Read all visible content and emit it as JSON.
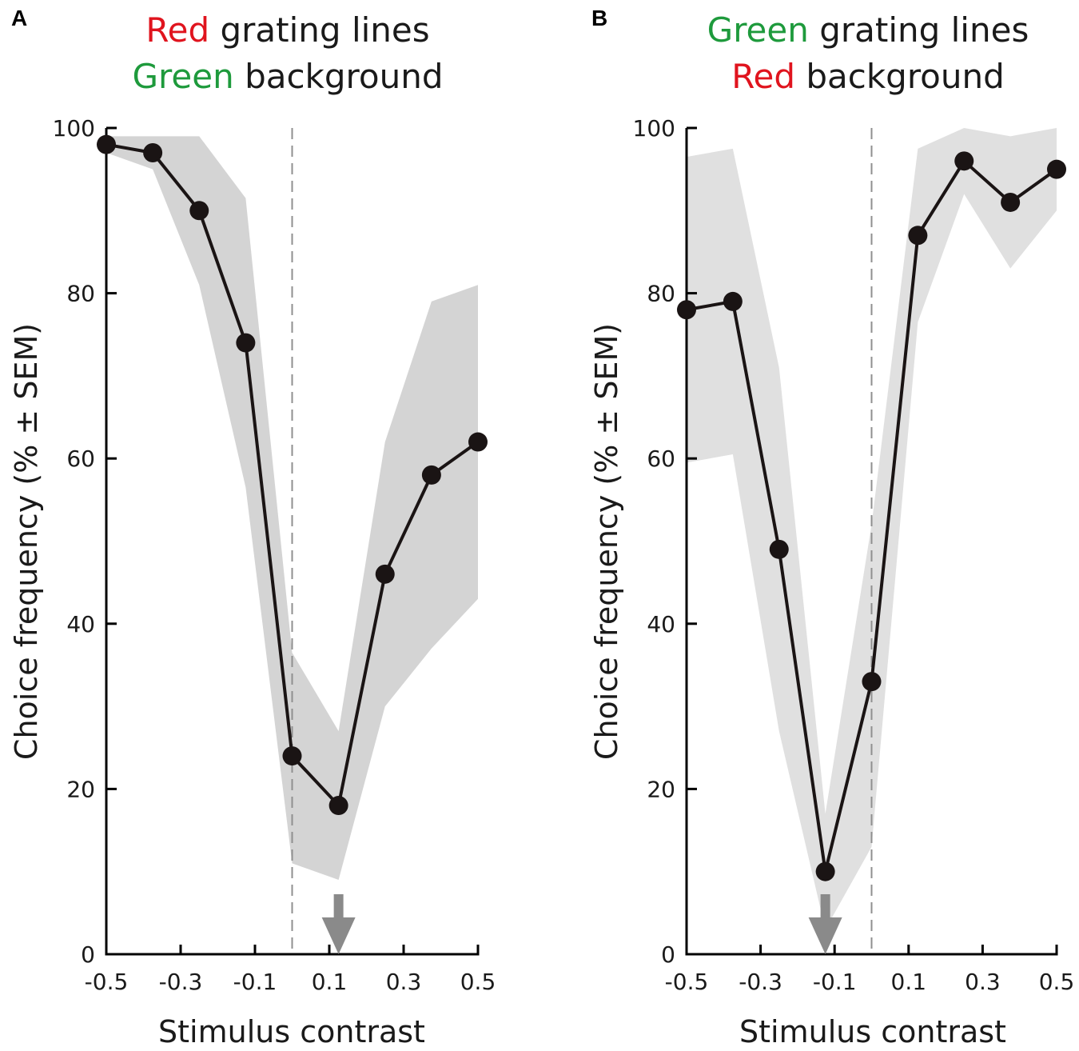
{
  "chart_data": [
    {
      "type": "line",
      "panel_label": "A",
      "title": {
        "line1": [
          {
            "text": "Red",
            "color": "#e0141e"
          },
          {
            "text": " grating lines",
            "color": "#1a1a1a"
          }
        ],
        "line2": [
          {
            "text": "Green",
            "color": "#1e9a3c"
          },
          {
            "text": " background",
            "color": "#1a1a1a"
          }
        ]
      },
      "xlabel": "Stimulus contrast",
      "ylabel": "Choice frequency  (% ± SEM)",
      "xlim": [
        -0.5,
        0.5
      ],
      "ylim": [
        0,
        100
      ],
      "xticks": [
        -0.5,
        -0.3,
        -0.1,
        0.1,
        0.3,
        0.5
      ],
      "xtick_labels": [
        "-0.5",
        "-0.3",
        "-0.1",
        "0.1",
        "0.3",
        "0.5"
      ],
      "yticks": [
        0,
        20,
        40,
        60,
        80,
        100
      ],
      "ytick_labels": [
        "0",
        "20",
        "40",
        "60",
        "80",
        "100"
      ],
      "x": [
        -0.5,
        -0.375,
        -0.25,
        -0.125,
        0.0,
        0.125,
        0.25,
        0.375,
        0.5
      ],
      "y": [
        98,
        97,
        90,
        74,
        24,
        18,
        46,
        58,
        62
      ],
      "sem_upper": [
        99,
        99,
        99,
        91.5,
        36.5,
        27,
        62,
        79,
        81
      ],
      "sem_lower": [
        97,
        95,
        81,
        56.5,
        11,
        9,
        30,
        37,
        43
      ],
      "dashed_line_x": 0.0,
      "arrow_x": 0.125,
      "colors": {
        "line": "#1a1414",
        "marker": "#1a1414",
        "band": "#d4d4d4",
        "arrow": "#8a8a8a",
        "dashed": "#8f8f8f"
      }
    },
    {
      "type": "line",
      "panel_label": "B",
      "title": {
        "line1": [
          {
            "text": "Green",
            "color": "#1e9a3c"
          },
          {
            "text": " grating lines",
            "color": "#1a1a1a"
          }
        ],
        "line2": [
          {
            "text": "Red",
            "color": "#e0141e"
          },
          {
            "text": " background",
            "color": "#1a1a1a"
          }
        ]
      },
      "xlabel": "Stimulus contrast",
      "ylabel": "Choice frequency  (% ± SEM)",
      "xlim": [
        -0.5,
        0.5
      ],
      "ylim": [
        0,
        100
      ],
      "xticks": [
        -0.5,
        -0.3,
        -0.1,
        0.1,
        0.3,
        0.5
      ],
      "xtick_labels": [
        "-0.5",
        "-0.3",
        "-0.1",
        "0.1",
        "0.3",
        "0.5"
      ],
      "yticks": [
        0,
        20,
        40,
        60,
        80,
        100
      ],
      "ytick_labels": [
        "0",
        "20",
        "40",
        "60",
        "80",
        "100"
      ],
      "x": [
        -0.5,
        -0.375,
        -0.25,
        -0.125,
        0.0,
        0.125,
        0.25,
        0.375,
        0.5
      ],
      "y": [
        78,
        79,
        49,
        10,
        33,
        87,
        96,
        91,
        95
      ],
      "sem_upper": [
        96.5,
        97.5,
        71,
        17,
        52,
        97.5,
        100,
        99,
        100
      ],
      "sem_lower": [
        59.5,
        60.5,
        27,
        3,
        13,
        76.5,
        92,
        83,
        90
      ],
      "dashed_line_x": 0.0,
      "arrow_x": -0.125,
      "colors": {
        "line": "#1a1414",
        "marker": "#1a1414",
        "band": "#e0e0e0",
        "arrow": "#8a8a8a",
        "dashed": "#8f8f8f"
      }
    }
  ]
}
